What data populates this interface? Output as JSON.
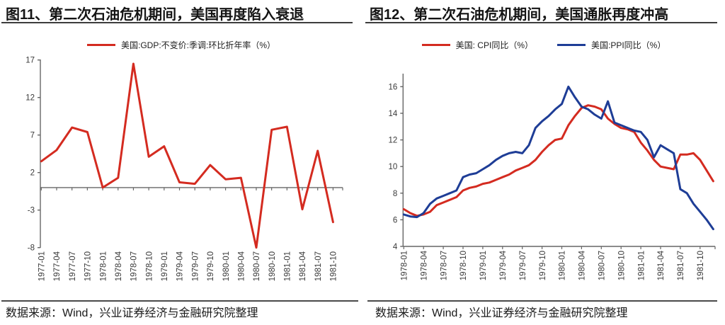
{
  "accent_colors": {
    "red": "#d42b20",
    "blue": "#1e3d96",
    "rule_dark": "#3d3d3d",
    "axis_gray": "#666666"
  },
  "charts": [
    {
      "title": "图11、第二次石油危机期间，美国再度陷入衰退",
      "source": "数据来源：Wind，兴业证券经济与金融研究院整理",
      "legend": [
        {
          "label": "美国:GDP:不变价:季调:环比折年率（%）",
          "color": "#d42b20"
        }
      ]
    },
    {
      "title": "图12、第二次石油危机期间，美国通胀再度冲高",
      "source": "数据来源：Wind，兴业证券经济与金融研究院整理",
      "legend": [
        {
          "label": "美国: CPI同比（%）",
          "color": "#d42b20"
        },
        {
          "label": "美国:PPI同比（%）",
          "color": "#1e3d96"
        }
      ]
    }
  ],
  "chart_data": [
    {
      "type": "line",
      "title": "图11、第二次石油危机期间，美国再度陷入衰退",
      "xlabel": "",
      "ylabel": "",
      "ylim": [
        -8,
        17
      ],
      "yticks": [
        17,
        12,
        7,
        2,
        -3,
        -8
      ],
      "x_axis_at": 0,
      "tick_every": 1,
      "grid": false,
      "legend_position": "top",
      "categories": [
        "1977-01",
        "1977-04",
        "1977-07",
        "1977-10",
        "1978-01",
        "1978-04",
        "1978-07",
        "1978-10",
        "1979-01",
        "1979-04",
        "1979-07",
        "1979-10",
        "1980-01",
        "1980-04",
        "1980-07",
        "1980-10",
        "1981-01",
        "1981-04",
        "1981-07",
        "1981-10"
      ],
      "series": [
        {
          "name": "美国:GDP:不变价:季调:环比折年率（%）",
          "id": "gdp",
          "color": "#d42b20",
          "values": [
            3.5,
            5.0,
            8.0,
            7.4,
            0.0,
            1.3,
            16.5,
            4.1,
            5.5,
            0.7,
            0.5,
            3.0,
            1.1,
            1.3,
            -8.0,
            7.7,
            8.1,
            -2.9,
            4.9,
            -4.6
          ]
        }
      ]
    },
    {
      "type": "line",
      "title": "图12、第二次石油危机期间，美国通胀再度冲高",
      "xlabel": "",
      "ylabel": "",
      "ylim": [
        4,
        16
      ],
      "yticks": [
        16,
        14,
        12,
        10,
        8,
        6,
        4
      ],
      "x_axis_at": 4,
      "tick_every": 3,
      "grid": false,
      "legend_position": "top",
      "categories": [
        "1978-01",
        "1978-02",
        "1978-03",
        "1978-04",
        "1978-05",
        "1978-06",
        "1978-07",
        "1978-08",
        "1978-09",
        "1978-10",
        "1978-11",
        "1978-12",
        "1979-01",
        "1979-02",
        "1979-03",
        "1979-04",
        "1979-05",
        "1979-06",
        "1979-07",
        "1979-08",
        "1979-09",
        "1979-10",
        "1979-11",
        "1979-12",
        "1980-01",
        "1980-02",
        "1980-03",
        "1980-04",
        "1980-05",
        "1980-06",
        "1980-07",
        "1980-08",
        "1980-09",
        "1980-10",
        "1980-11",
        "1980-12",
        "1981-01",
        "1981-02",
        "1981-03",
        "1981-04",
        "1981-05",
        "1981-06",
        "1981-07",
        "1981-08",
        "1981-09",
        "1981-10",
        "1981-11",
        "1981-12"
      ],
      "series": [
        {
          "name": "美国: CPI同比（%）",
          "id": "cpi",
          "color": "#d42b20",
          "values": [
            6.8,
            6.5,
            6.3,
            6.4,
            6.6,
            7.1,
            7.3,
            7.5,
            7.7,
            8.2,
            8.4,
            8.5,
            8.7,
            8.8,
            9.0,
            9.2,
            9.4,
            9.7,
            9.9,
            10.1,
            10.5,
            11.1,
            11.6,
            12.0,
            12.1,
            13.1,
            13.8,
            14.4,
            14.6,
            14.5,
            14.3,
            13.6,
            13.2,
            12.9,
            12.8,
            12.6,
            11.8,
            11.2,
            10.5,
            10.0,
            9.9,
            9.8,
            10.9,
            10.9,
            11.0,
            10.5,
            9.7,
            8.9
          ]
        },
        {
          "name": "美国:PPI同比（%）",
          "id": "ppi",
          "color": "#1e3d96",
          "values": [
            6.4,
            6.25,
            6.2,
            6.5,
            7.2,
            7.6,
            7.8,
            8.0,
            8.2,
            9.2,
            9.4,
            9.5,
            9.8,
            10.1,
            10.5,
            10.8,
            11.0,
            11.1,
            11.0,
            11.6,
            12.9,
            13.4,
            13.8,
            14.3,
            14.7,
            16.0,
            15.2,
            14.5,
            14.3,
            13.9,
            13.6,
            14.9,
            13.3,
            13.1,
            12.9,
            12.7,
            12.6,
            12.0,
            10.7,
            11.6,
            11.3,
            11.0,
            8.3,
            8.0,
            7.2,
            6.6,
            6.0,
            5.3
          ]
        }
      ]
    }
  ]
}
